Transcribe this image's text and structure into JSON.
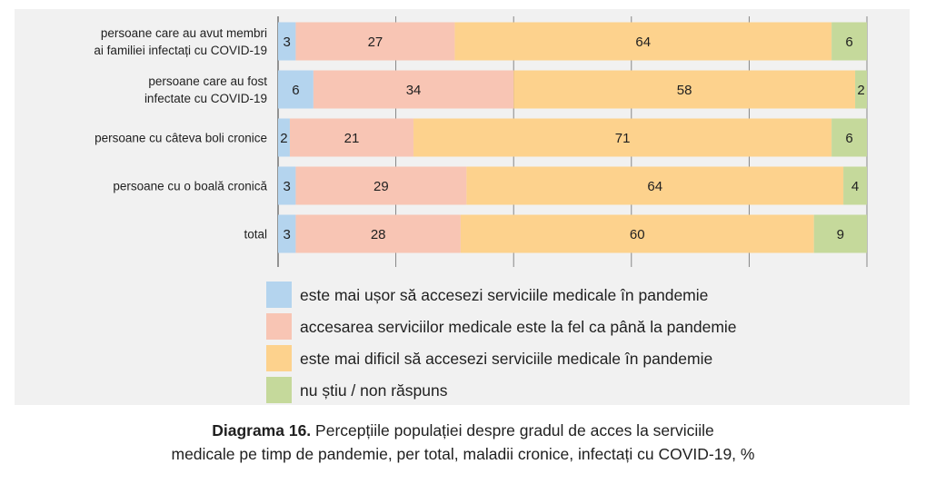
{
  "chart_data": {
    "type": "bar",
    "orientation": "horizontal",
    "stacked": true,
    "categories": [
      [
        "persoane care au avut membri",
        "ai familiei infectați cu COVID-19"
      ],
      [
        "persoane care au fost",
        "infectate cu COVID-19"
      ],
      [
        "persoane cu câteva boli cronice"
      ],
      [
        "persoane cu o boală cronică"
      ],
      [
        "total"
      ]
    ],
    "series": [
      {
        "name": "este mai ușor să accesezi serviciile medicale în pandemie",
        "color": "#b4d4ee",
        "values": [
          3,
          6,
          2,
          3,
          3
        ]
      },
      {
        "name": "accesarea serviciilor medicale este la fel ca până la pandemie",
        "color": "#f8c5b4",
        "values": [
          27,
          34,
          21,
          29,
          28
        ]
      },
      {
        "name": "este mai dificil să accesezi serviciile medicale în pandemie",
        "color": "#fdd28d",
        "values": [
          64,
          58,
          71,
          64,
          60
        ]
      },
      {
        "name": "nu știu / non răspuns",
        "color": "#c5d99b",
        "values": [
          6,
          2,
          6,
          4,
          9
        ]
      }
    ],
    "xlim": [
      0,
      100
    ],
    "grid": true,
    "legend_position": "bottom"
  },
  "caption": {
    "label": "Diagrama 16.",
    "line1": "Percepțiile populației despre gradul de acces la serviciile",
    "line2": "medicale pe timp de pandemie, per total, maladii cronice, infectați cu COVID-19, %"
  }
}
